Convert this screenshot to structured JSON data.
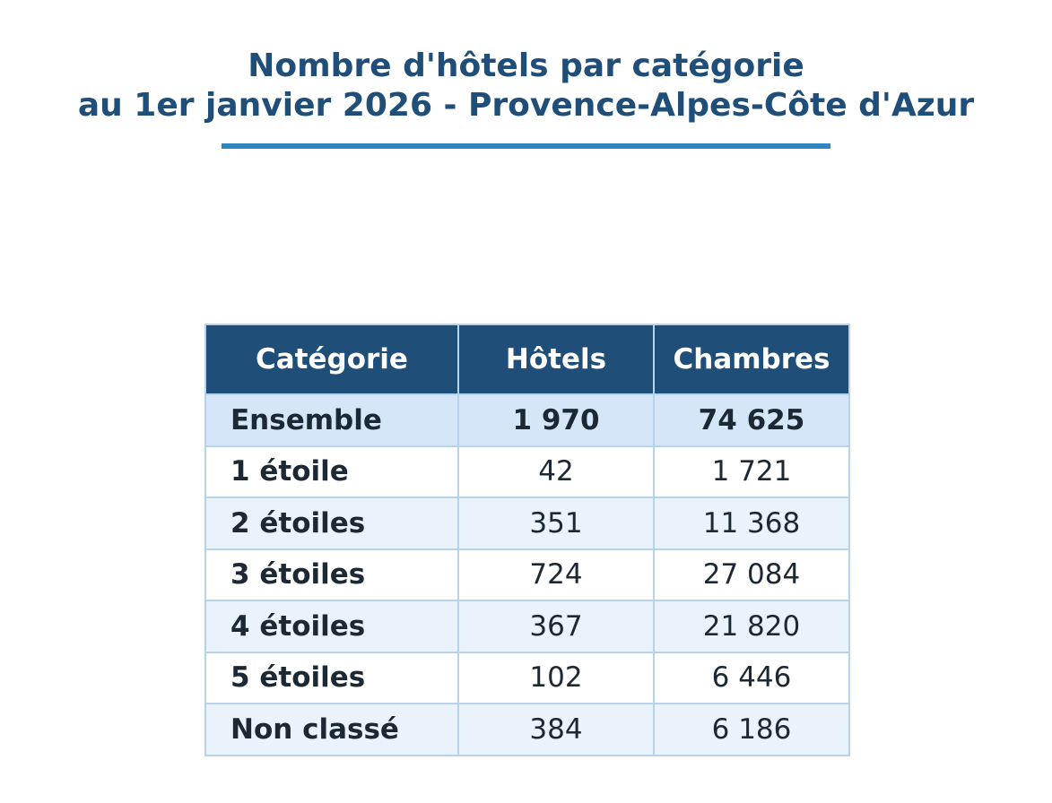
{
  "colors": {
    "title": "#1f4e79",
    "rule": "#2e86c1",
    "header_bg": "#1f4e79",
    "header_text": "#ffffff",
    "total_row_bg": "#d4e6f8",
    "alt_row_bg": "#eaf2fb",
    "border": "#b7d3ec",
    "text": "#1c2833"
  },
  "chart_data": {
    "type": "table",
    "title": "Nombre d'hôtels par catégorie",
    "subtitle": "au 1er janvier 2026 - Provence-Alpes-Côte d'Azur",
    "columns": [
      "Catégorie",
      "Hôtels",
      "Chambres"
    ],
    "rows": [
      {
        "category": "Ensemble",
        "hotels": "1 970",
        "rooms": "74 625"
      },
      {
        "category": "1 étoile",
        "hotels": "42",
        "rooms": "1 721"
      },
      {
        "category": "2 étoiles",
        "hotels": "351",
        "rooms": "11 368"
      },
      {
        "category": "3 étoiles",
        "hotels": "724",
        "rooms": "27 084"
      },
      {
        "category": "4 étoiles",
        "hotels": "367",
        "rooms": "21 820"
      },
      {
        "category": "5 étoiles",
        "hotels": "102",
        "rooms": "6 446"
      },
      {
        "category": "Non classé",
        "hotels": "384",
        "rooms": "6 186"
      }
    ]
  }
}
